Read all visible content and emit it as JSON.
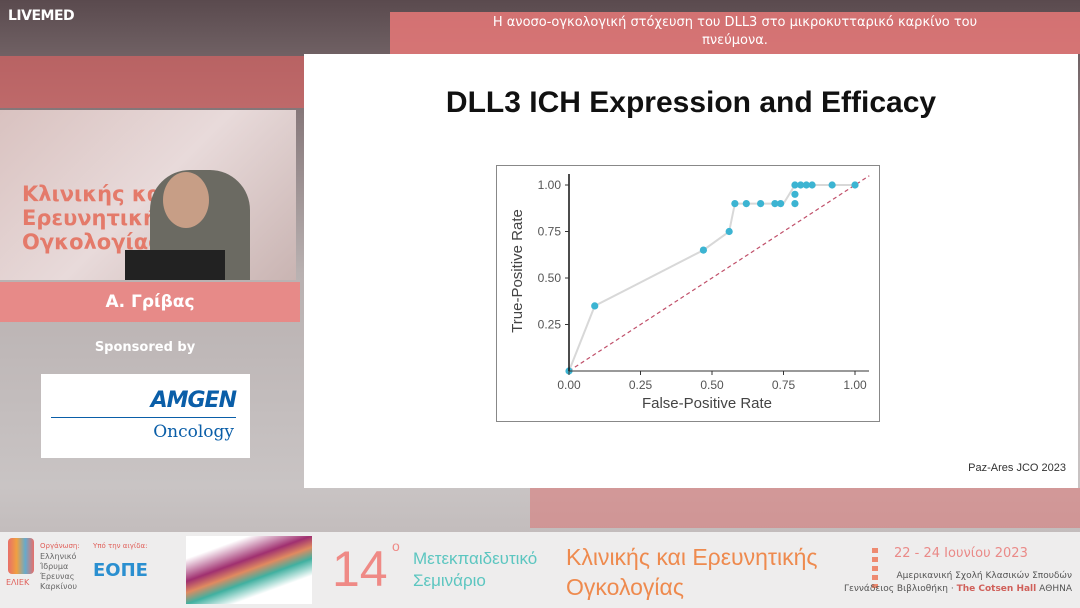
{
  "header": {
    "logo": "LIVEMED",
    "talk_title": "Η ανοσο-ογκολογική στόχευση του DLL3 στο μικροκυτταρικό καρκίνο του πνεύμονα."
  },
  "speaker": {
    "name": "Α. Γρίβας",
    "backdrop_text": "Κλινικής και Ερευνητικής Ογκολογίας"
  },
  "sponsor": {
    "label": "Sponsored by",
    "logo_main": "AMGEN",
    "logo_sub": "Oncology"
  },
  "slide": {
    "title": "DLL3 ICH Expression and Efficacy",
    "citation": "Paz-Ares JCO 2023"
  },
  "chart_data": {
    "type": "scatter",
    "title": "",
    "xlabel": "False-Positive Rate",
    "ylabel": "True-Positive Rate",
    "xlim": [
      0,
      1.05
    ],
    "ylim": [
      0,
      1.05
    ],
    "xticks": [
      "0.00",
      "0.25",
      "0.50",
      "0.75",
      "1.00"
    ],
    "yticks": [
      "0.25",
      "0.50",
      "0.75",
      "1.00"
    ],
    "grid": false,
    "points": [
      [
        0,
        0
      ],
      [
        0.09,
        0.35
      ],
      [
        0.47,
        0.65
      ],
      [
        0.56,
        0.75
      ],
      [
        0.58,
        0.9
      ],
      [
        0.62,
        0.9
      ],
      [
        0.67,
        0.9
      ],
      [
        0.72,
        0.9
      ],
      [
        0.74,
        0.9
      ],
      [
        0.79,
        0.9
      ],
      [
        0.79,
        0.95
      ],
      [
        0.79,
        1.0
      ],
      [
        0.81,
        1.0
      ],
      [
        0.83,
        1.0
      ],
      [
        0.85,
        1.0
      ],
      [
        0.92,
        1.0
      ],
      [
        1.0,
        1.0
      ]
    ],
    "curve": [
      [
        0,
        0
      ],
      [
        0.09,
        0.35
      ],
      [
        0.47,
        0.65
      ],
      [
        0.56,
        0.75
      ],
      [
        0.58,
        0.9
      ],
      [
        0.75,
        0.9
      ],
      [
        0.79,
        1.0
      ],
      [
        1.0,
        1.0
      ]
    ],
    "reference_line": [
      [
        0,
        0
      ],
      [
        1.05,
        1.05
      ]
    ],
    "colors": {
      "points": "#3cb4d2",
      "curve": "#d8d8d8",
      "reference": "#c0506a"
    }
  },
  "footer": {
    "organizer_label": "Οργάνωση:",
    "organizer": "Ελληνικό Ίδρυμα Έρευνας Καρκίνου",
    "organizer_abbr": "ΕΛΙΕΚ",
    "auspices_label": "Υπό την αιγίδα:",
    "auspices": "ΕΟΠΕ",
    "edition": "14",
    "edition_sup": "ο",
    "seminar": "Μετεκπαιδευτικό Σεμινάριο",
    "topic": "Κλινικής και Ερευνητικής Ογκολογίας",
    "dates": "22 - 24 Ιουνίου 2023",
    "venue1": "Αμερικανική Σχολή Κλασικών Σπουδών",
    "venue2_a": "Γεννάδειος Βιβλιοθήκη · ",
    "venue2_b": "The Cotsen Hall",
    "venue2_c": " ΑΘΗΝΑ"
  }
}
